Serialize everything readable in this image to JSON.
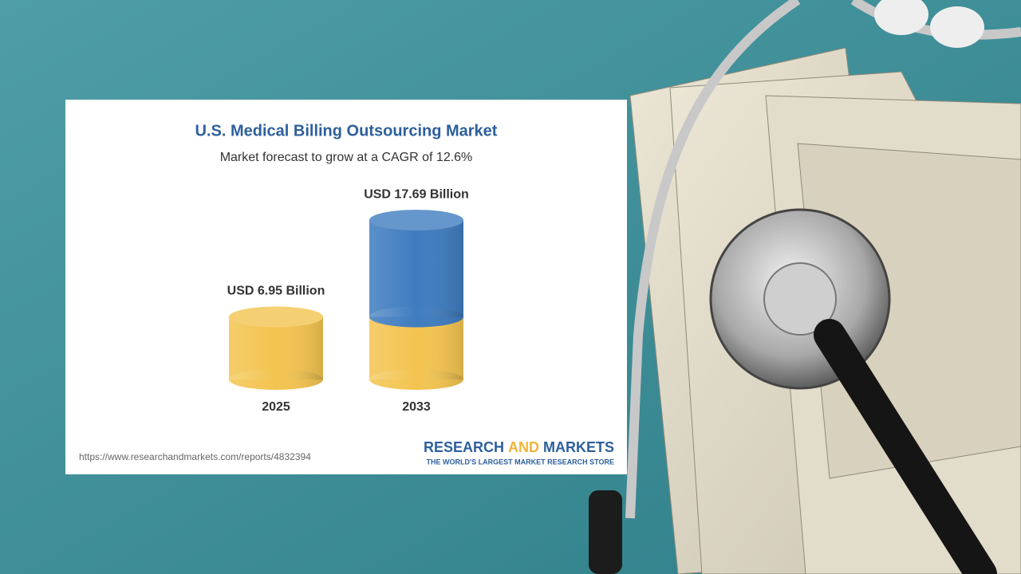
{
  "chart_data": {
    "type": "cylinder",
    "title": "U.S. Medical Billing Outsourcing Market",
    "subtitle": "Market forecast to grow at a CAGR of 12.6%",
    "categories": [
      "2025",
      "2033"
    ],
    "values": [
      6.95,
      17.69
    ],
    "value_labels": [
      "USD 6.95 Billion",
      "USD 17.69 Billion"
    ],
    "colors": [
      "#f3c450",
      "#3f7cbf"
    ],
    "source": "https://www.researchandmarkets.com/reports/4832394",
    "brand": [
      "RESEARCH",
      "AND",
      "MARKETS"
    ],
    "tagline": "THE WORLD'S LARGEST MARKET RESEARCH STORE"
  }
}
